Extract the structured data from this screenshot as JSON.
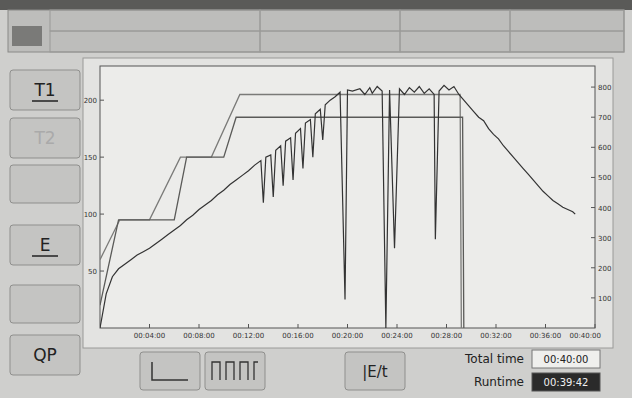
{
  "chart_data": {
    "type": "line",
    "xlim": [
      0,
      40
    ],
    "xticks": [
      {
        "value": 4,
        "label": "00:04:00"
      },
      {
        "value": 8,
        "label": "00:08:00"
      },
      {
        "value": 12,
        "label": "00:12:00"
      },
      {
        "value": 16,
        "label": "00:16:00"
      },
      {
        "value": 20,
        "label": "00:20:00"
      },
      {
        "value": 24,
        "label": "00:24:00"
      },
      {
        "value": 28,
        "label": "00:28:00"
      },
      {
        "value": 32,
        "label": "00:32:00"
      },
      {
        "value": 36,
        "label": "00:36:00"
      },
      {
        "value": 40,
        "label": "00:40:00"
      }
    ],
    "ylim": [
      0,
      230
    ],
    "yticks": [
      50,
      100,
      150,
      200
    ],
    "y2lim": [
      0,
      870
    ],
    "y2ticks": [
      100,
      200,
      300,
      400,
      500,
      600,
      700,
      800
    ],
    "series": [
      {
        "color": "#7a7a78",
        "line_style": "solid",
        "x": [
          0,
          1.6,
          4,
          6.5,
          9,
          11.3,
          13.7,
          29.1,
          29.2
        ],
        "values": [
          60,
          95,
          95,
          150,
          150,
          205,
          205,
          205,
          0
        ]
      },
      {
        "color": "#5a5a58",
        "line_style": "solid",
        "x": [
          0,
          1.5,
          6,
          7,
          10,
          11,
          29.3,
          29.4
        ],
        "values": [
          20,
          95,
          95,
          150,
          150,
          185,
          185,
          0
        ]
      },
      {
        "color": "#333333",
        "line_style": "solid",
        "x": [
          0,
          0.5,
          1,
          1.5,
          2,
          2.5,
          3,
          3.5,
          4,
          4.5,
          5,
          5.5,
          6,
          6.5,
          7,
          7.5,
          8,
          8.5,
          9,
          9.5,
          10,
          10.5,
          11,
          11.5,
          12,
          12.5,
          13,
          13.2,
          13.4,
          13.8,
          14,
          14.2,
          14.6,
          14.8,
          15,
          15.4,
          15.6,
          15.8,
          16.2,
          16.4,
          16.6,
          17,
          17.2,
          17.4,
          17.8,
          18,
          18.2,
          18.6,
          19,
          19.4,
          19.8,
          20,
          20.4,
          21,
          21.4,
          21.8,
          22,
          22.4,
          22.8,
          23.1,
          23.4,
          23.8,
          24.2,
          24.6,
          25,
          25.4,
          25.8,
          26.2,
          26.6,
          27,
          27.1,
          27.4,
          27.8,
          28.2,
          28.6,
          29,
          29.4,
          29.8,
          30.2,
          30.6,
          31,
          31.4,
          31.8,
          32.2,
          32.6,
          33,
          33.4,
          33.8,
          34.2,
          34.6,
          35,
          35.4,
          35.8,
          36.2,
          36.6,
          37,
          37.4,
          37.8,
          38.2,
          38.4
        ],
        "values": [
          0,
          30,
          45,
          52,
          56,
          60,
          64,
          67,
          70,
          74,
          78,
          82,
          86,
          90,
          95,
          99,
          104,
          108,
          112,
          117,
          121,
          126,
          130,
          134,
          138,
          143,
          147,
          110,
          150,
          152,
          115,
          156,
          160,
          125,
          164,
          167,
          130,
          171,
          175,
          140,
          180,
          183,
          150,
          188,
          192,
          165,
          196,
          200,
          203,
          207,
          25,
          209,
          208,
          210,
          205,
          211,
          206,
          212,
          208,
          0,
          209,
          70,
          210,
          205,
          211,
          207,
          212,
          206,
          210,
          205,
          78,
          208,
          213,
          209,
          212,
          205,
          200,
          195,
          190,
          185,
          182,
          175,
          170,
          166,
          160,
          155,
          150,
          145,
          140,
          135,
          130,
          125,
          120,
          116,
          112,
          109,
          106,
          104,
          102,
          100
        ]
      }
    ]
  },
  "screen": {
    "sidebar": [
      "T1",
      "T2",
      "E",
      "QP"
    ],
    "footer": {
      "formula": "|E/t",
      "total_time_label": "Total time",
      "total_time": "00:40:00",
      "runtime_label": "Runtime",
      "runtime": "00:39:42"
    }
  }
}
